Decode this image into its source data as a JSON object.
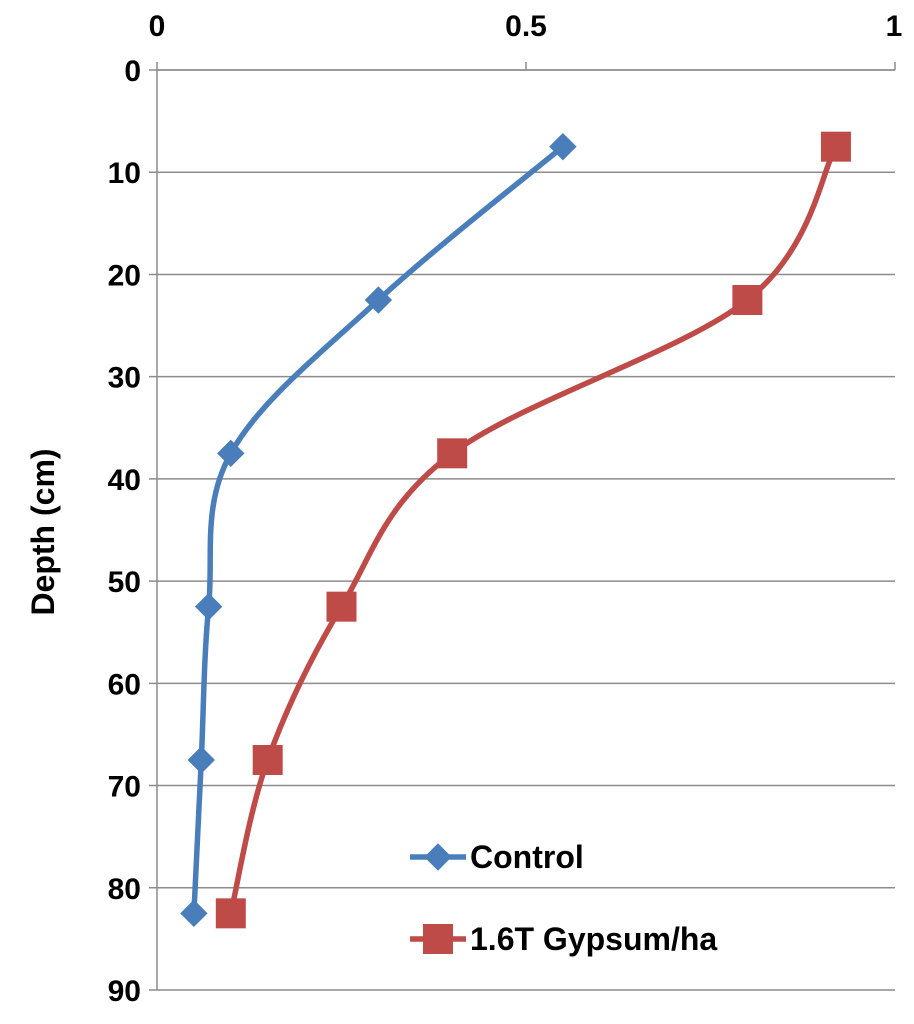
{
  "chart_data": {
    "type": "line",
    "title": "",
    "xlabel": "",
    "ylabel": "Depth (cm)",
    "xlim": [
      0,
      1
    ],
    "ylim": [
      0,
      90
    ],
    "y_inverted": true,
    "x_axis_position": "top",
    "x_ticks": [
      "0",
      "0.5",
      "1"
    ],
    "y_ticks": [
      "0",
      "10",
      "20",
      "30",
      "40",
      "50",
      "60",
      "70",
      "80",
      "90"
    ],
    "grid": "horizontal",
    "legend_position": "bottom-right",
    "series": [
      {
        "name": "Control",
        "color": "#4a7ebb",
        "marker": "diamond",
        "points": [
          {
            "x": 0.55,
            "y": 7.5
          },
          {
            "x": 0.3,
            "y": 22.5
          },
          {
            "x": 0.1,
            "y": 37.5
          },
          {
            "x": 0.07,
            "y": 52.5
          },
          {
            "x": 0.06,
            "y": 67.5
          },
          {
            "x": 0.05,
            "y": 82.5
          }
        ]
      },
      {
        "name": "1.6T Gypsum/ha",
        "color": "#be4b48",
        "marker": "square",
        "points": [
          {
            "x": 0.92,
            "y": 7.5
          },
          {
            "x": 0.8,
            "y": 22.5
          },
          {
            "x": 0.4,
            "y": 37.5
          },
          {
            "x": 0.25,
            "y": 52.5
          },
          {
            "x": 0.15,
            "y": 67.5
          },
          {
            "x": 0.1,
            "y": 82.5
          }
        ]
      }
    ]
  }
}
